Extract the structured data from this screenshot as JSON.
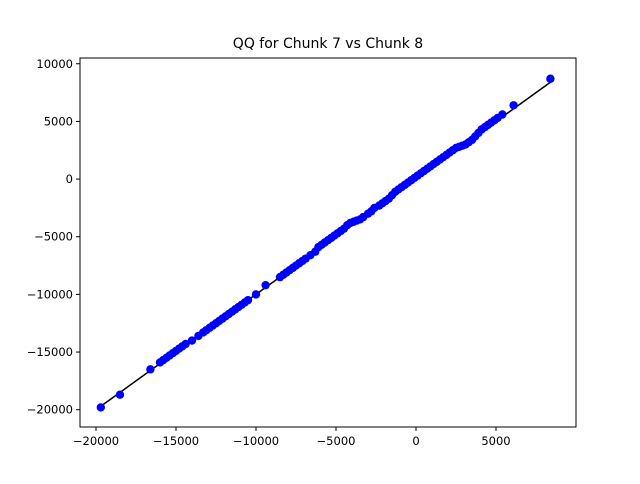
{
  "chart_data": {
    "type": "scatter",
    "title": "QQ for Chunk 7 vs Chunk 8",
    "xlabel": "",
    "ylabel": "",
    "xlim": [
      -21000,
      10000
    ],
    "ylim": [
      -21500,
      10500
    ],
    "xticks": [
      -20000,
      -15000,
      -10000,
      -5000,
      0,
      5000
    ],
    "xtick_labels": [
      "−20000",
      "−15000",
      "−10000",
      "−5000",
      "0",
      "5000"
    ],
    "yticks": [
      -20000,
      -15000,
      -10000,
      -5000,
      0,
      5000,
      10000
    ],
    "ytick_labels": [
      "−20000",
      "−15000",
      "−10000",
      "−5000",
      "0",
      "5000",
      "10000"
    ],
    "grid": false,
    "legend": "none",
    "colors": {
      "points": "#0000ff",
      "line": "#000000"
    },
    "reference_line": {
      "x": [
        -19700,
        8400
      ],
      "y": [
        -19700,
        8400
      ]
    },
    "series": [
      {
        "x": [
          -19700,
          -18500,
          -16600,
          -16000,
          -15800,
          -15600,
          -15400,
          -15200,
          -15000,
          -14800,
          -14600,
          -14400,
          -14000,
          -13600,
          -13300,
          -13100,
          -12900,
          -12700,
          -12500,
          -12300,
          -12100,
          -11900,
          -11700,
          -11500,
          -11300,
          -11100,
          -10900,
          -10700,
          -10500,
          -10000,
          -9400,
          -8500,
          -8300,
          -8100,
          -7900,
          -7700,
          -7500,
          -7300,
          -7100,
          -6900,
          -6600,
          -6300,
          -6100,
          -5900,
          -5700,
          -5500,
          -5300,
          -5100,
          -4900,
          -4700,
          -4500,
          -4300,
          -4100,
          -3900,
          -3700,
          -3500,
          -3300,
          -3000,
          -2800,
          -2600,
          -2300,
          -2100,
          -1900,
          -1700,
          -1500,
          -1300,
          -1100,
          -900,
          -700,
          -500,
          -300,
          -100,
          100,
          300,
          500,
          700,
          900,
          1100,
          1300,
          1500,
          1700,
          1900,
          2100,
          2300,
          2500,
          2700,
          2900,
          3100,
          3300,
          3500,
          3700,
          3900,
          4100,
          4300,
          4500,
          4700,
          4900,
          5100,
          5400,
          6100,
          8400
        ],
        "y": [
          -19800,
          -18700,
          -16500,
          -15900,
          -15700,
          -15500,
          -15300,
          -15100,
          -14900,
          -14700,
          -14500,
          -14300,
          -14000,
          -13600,
          -13300,
          -13100,
          -12900,
          -12700,
          -12500,
          -12300,
          -12100,
          -11900,
          -11700,
          -11500,
          -11300,
          -11100,
          -10900,
          -10700,
          -10500,
          -10000,
          -9200,
          -8500,
          -8300,
          -8100,
          -7900,
          -7700,
          -7500,
          -7300,
          -7100,
          -6900,
          -6600,
          -6300,
          -5900,
          -5700,
          -5500,
          -5300,
          -5100,
          -4900,
          -4700,
          -4500,
          -4300,
          -4000,
          -3800,
          -3700,
          -3600,
          -3500,
          -3300,
          -3000,
          -2800,
          -2500,
          -2300,
          -2100,
          -1900,
          -1700,
          -1400,
          -1100,
          -900,
          -700,
          -500,
          -300,
          -100,
          100,
          300,
          500,
          700,
          900,
          1100,
          1300,
          1500,
          1700,
          1900,
          2100,
          2300,
          2500,
          2700,
          2800,
          2900,
          3000,
          3200,
          3400,
          3700,
          4000,
          4300,
          4500,
          4700,
          4900,
          5100,
          5300,
          5600,
          6400,
          8700
        ]
      }
    ]
  }
}
